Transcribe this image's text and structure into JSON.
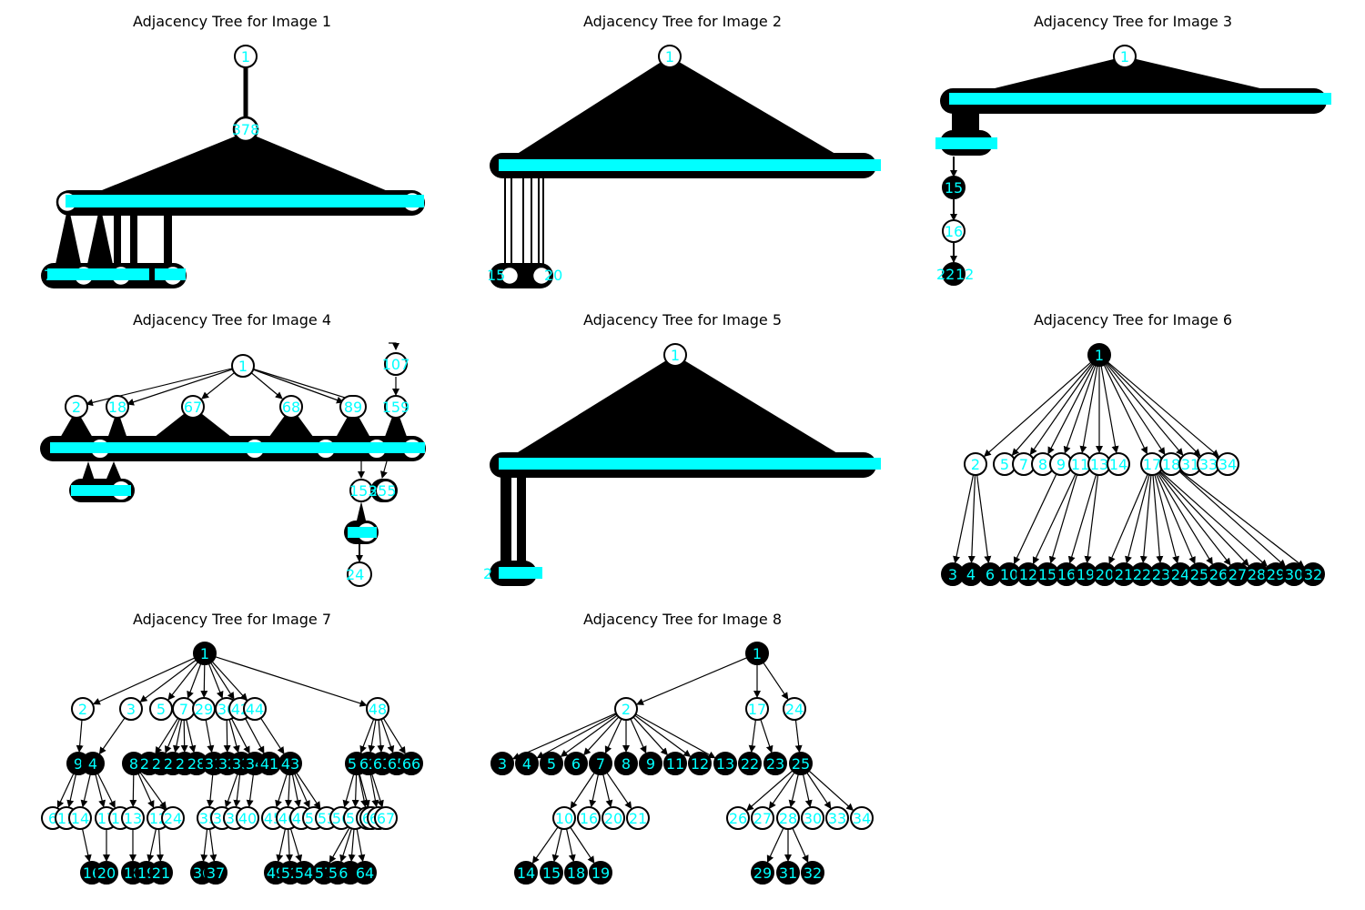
{
  "colors": {
    "background": "#ffffff",
    "edge": "#000000",
    "node_stroke": "#000000",
    "node_fill_open": "#ffffff",
    "node_fill_filled": "#000000",
    "label": "#00ffff",
    "bar": "#00ffff"
  },
  "panels": [
    {
      "id": "tree1",
      "title": "Adjacency Tree for Image 1",
      "style": "dense",
      "root_label": "1",
      "mid_labels": [
        "378"
      ],
      "bottom_labels": [
        "7"
      ]
    },
    {
      "id": "tree2",
      "title": "Adjacency Tree for Image 2",
      "style": "dense",
      "root_label": "1",
      "mid_labels": [],
      "bottom_labels": [
        "15",
        "20"
      ]
    },
    {
      "id": "tree3",
      "title": "Adjacency Tree for Image 3",
      "style": "dense",
      "root_label": "1",
      "mid_labels": [
        "15",
        "16"
      ],
      "bottom_labels": [
        "22",
        "12"
      ]
    },
    {
      "id": "tree4",
      "title": "Adjacency Tree for Image 4",
      "style": "mixed",
      "labels": [
        "1",
        "2",
        "18",
        "67",
        "68",
        "89",
        "107",
        "159",
        "153",
        "255",
        "24"
      ]
    },
    {
      "id": "tree5",
      "title": "Adjacency Tree for Image 5",
      "style": "dense",
      "root_label": "1",
      "mid_labels": [],
      "bottom_labels": [
        "2"
      ]
    },
    {
      "id": "tree6",
      "title": "Adjacency Tree for Image 6",
      "style": "clean",
      "nodes": [
        {
          "label": "1",
          "filled": true
        },
        {
          "label": "2",
          "filled": false
        },
        {
          "label": "5",
          "filled": false
        },
        {
          "label": "7",
          "filled": false
        },
        {
          "label": "8",
          "filled": false
        },
        {
          "label": "9",
          "filled": false
        },
        {
          "label": "11",
          "filled": false
        },
        {
          "label": "13",
          "filled": false
        },
        {
          "label": "14",
          "filled": false
        },
        {
          "label": "17",
          "filled": false
        },
        {
          "label": "18",
          "filled": false
        },
        {
          "label": "31",
          "filled": false
        },
        {
          "label": "33",
          "filled": false
        },
        {
          "label": "34",
          "filled": false
        },
        {
          "label": "3",
          "filled": true
        },
        {
          "label": "4",
          "filled": true
        },
        {
          "label": "6",
          "filled": true
        },
        {
          "label": "10",
          "filled": true
        },
        {
          "label": "12",
          "filled": true
        },
        {
          "label": "15",
          "filled": true
        },
        {
          "label": "16",
          "filled": true
        },
        {
          "label": "19",
          "filled": true
        },
        {
          "label": "20",
          "filled": true
        },
        {
          "label": "21",
          "filled": true
        },
        {
          "label": "22",
          "filled": true
        },
        {
          "label": "23",
          "filled": true
        },
        {
          "label": "24",
          "filled": true
        },
        {
          "label": "25",
          "filled": true
        },
        {
          "label": "26",
          "filled": true
        },
        {
          "label": "27",
          "filled": true
        },
        {
          "label": "28",
          "filled": true
        },
        {
          "label": "29",
          "filled": true
        },
        {
          "label": "30",
          "filled": true
        },
        {
          "label": "32",
          "filled": true
        }
      ],
      "edges": [
        [
          "1",
          "2"
        ],
        [
          "1",
          "5"
        ],
        [
          "1",
          "7"
        ],
        [
          "1",
          "8"
        ],
        [
          "1",
          "9"
        ],
        [
          "1",
          "11"
        ],
        [
          "1",
          "13"
        ],
        [
          "1",
          "14"
        ],
        [
          "1",
          "17"
        ],
        [
          "1",
          "18"
        ],
        [
          "1",
          "31"
        ],
        [
          "1",
          "33"
        ],
        [
          "1",
          "34"
        ],
        [
          "2",
          "3"
        ],
        [
          "2",
          "4"
        ],
        [
          "2",
          "6"
        ],
        [
          "9",
          "10"
        ],
        [
          "11",
          "12"
        ],
        [
          "11",
          "15"
        ],
        [
          "13",
          "16"
        ],
        [
          "13",
          "19"
        ],
        [
          "17",
          "20"
        ],
        [
          "17",
          "21"
        ],
        [
          "17",
          "22"
        ],
        [
          "17",
          "23"
        ],
        [
          "17",
          "24"
        ],
        [
          "17",
          "25"
        ],
        [
          "17",
          "26"
        ],
        [
          "17",
          "27"
        ],
        [
          "17",
          "28"
        ],
        [
          "17",
          "29"
        ],
        [
          "18",
          "30"
        ],
        [
          "18",
          "32"
        ]
      ]
    },
    {
      "id": "tree7",
      "title": "Adjacency Tree for Image 7",
      "style": "clean",
      "nodes": [
        {
          "label": "1",
          "filled": true
        },
        {
          "label": "2",
          "filled": false
        },
        {
          "label": "3",
          "filled": false
        },
        {
          "label": "5",
          "filled": false
        },
        {
          "label": "7",
          "filled": false
        },
        {
          "label": "29",
          "filled": false
        },
        {
          "label": "30",
          "filled": false
        },
        {
          "label": "42",
          "filled": false
        },
        {
          "label": "44",
          "filled": false
        },
        {
          "label": "48",
          "filled": false
        },
        {
          "label": "9",
          "filled": true
        },
        {
          "label": "4",
          "filled": true
        },
        {
          "label": "8",
          "filled": true
        },
        {
          "label": "23",
          "filled": true
        },
        {
          "label": "25",
          "filled": true
        },
        {
          "label": "26",
          "filled": true
        },
        {
          "label": "27",
          "filled": true
        },
        {
          "label": "28",
          "filled": true
        },
        {
          "label": "31",
          "filled": true
        },
        {
          "label": "32",
          "filled": true
        },
        {
          "label": "33",
          "filled": true
        },
        {
          "label": "34",
          "filled": true
        },
        {
          "label": "41",
          "filled": true
        },
        {
          "label": "43",
          "filled": true
        },
        {
          "label": "51",
          "filled": true
        },
        {
          "label": "62",
          "filled": true
        },
        {
          "label": "63",
          "filled": true
        },
        {
          "label": "65",
          "filled": true
        },
        {
          "label": "66",
          "filled": true
        },
        {
          "label": "6",
          "filled": false
        },
        {
          "label": "11",
          "filled": false
        },
        {
          "label": "14",
          "filled": false
        },
        {
          "label": "17",
          "filled": false
        },
        {
          "label": "10",
          "filled": false
        },
        {
          "label": "13",
          "filled": false
        },
        {
          "label": "12",
          "filled": false
        },
        {
          "label": "24",
          "filled": false
        },
        {
          "label": "35",
          "filled": false
        },
        {
          "label": "38",
          "filled": false
        },
        {
          "label": "39",
          "filled": false
        },
        {
          "label": "40",
          "filled": false
        },
        {
          "label": "45",
          "filled": false
        },
        {
          "label": "46",
          "filled": false
        },
        {
          "label": "47",
          "filled": false
        },
        {
          "label": "50",
          "filled": false
        },
        {
          "label": "53",
          "filled": false
        },
        {
          "label": "56",
          "filled": false
        },
        {
          "label": "59",
          "filled": false
        },
        {
          "label": "55",
          "filled": false
        },
        {
          "label": "60",
          "filled": false
        },
        {
          "label": "61",
          "filled": false
        },
        {
          "label": "67",
          "filled": false
        },
        {
          "label": "16",
          "filled": true
        },
        {
          "label": "20",
          "filled": true
        },
        {
          "label": "18",
          "filled": true
        },
        {
          "label": "19",
          "filled": true
        },
        {
          "label": "21",
          "filled": true
        },
        {
          "label": "36",
          "filled": true
        },
        {
          "label": "37",
          "filled": true
        },
        {
          "label": "49",
          "filled": true
        },
        {
          "label": "52",
          "filled": true
        },
        {
          "label": "54",
          "filled": true
        },
        {
          "label": "57",
          "filled": true
        },
        {
          "label": "58",
          "filled": true
        },
        {
          "label": "6 0",
          "filled": true
        },
        {
          "label": "64",
          "filled": true
        }
      ],
      "edges": [
        [
          "1",
          "2"
        ],
        [
          "1",
          "3"
        ],
        [
          "1",
          "5"
        ],
        [
          "1",
          "7"
        ],
        [
          "1",
          "29"
        ],
        [
          "1",
          "30"
        ],
        [
          "1",
          "42"
        ],
        [
          "1",
          "44"
        ],
        [
          "1",
          "48"
        ],
        [
          "2",
          "9"
        ],
        [
          "3",
          "4"
        ],
        [
          "7",
          "23"
        ],
        [
          "7",
          "25"
        ],
        [
          "7",
          "26"
        ],
        [
          "7",
          "27"
        ],
        [
          "7",
          "28"
        ],
        [
          "29",
          "31"
        ],
        [
          "30",
          "32"
        ],
        [
          "30",
          "33"
        ],
        [
          "30",
          "34"
        ],
        [
          "42",
          "41"
        ],
        [
          "44",
          "43"
        ],
        [
          "48",
          "51"
        ],
        [
          "48",
          "62"
        ],
        [
          "48",
          "63"
        ],
        [
          "48",
          "65"
        ],
        [
          "48",
          "66"
        ],
        [
          "9",
          "6"
        ],
        [
          "9",
          "11"
        ],
        [
          "4",
          "14"
        ],
        [
          "4",
          "17"
        ],
        [
          "4",
          "10"
        ],
        [
          "8",
          "13"
        ],
        [
          "8",
          "12"
        ],
        [
          "8",
          "24"
        ],
        [
          "31",
          "35"
        ],
        [
          "33",
          "38"
        ],
        [
          "33",
          "39"
        ],
        [
          "34",
          "40"
        ],
        [
          "43",
          "45"
        ],
        [
          "43",
          "46"
        ],
        [
          "43",
          "47"
        ],
        [
          "43",
          "50"
        ],
        [
          "43",
          "53"
        ],
        [
          "51",
          "56"
        ],
        [
          "51",
          "59"
        ],
        [
          "51",
          "55"
        ],
        [
          "51",
          "60"
        ],
        [
          "62",
          "61"
        ],
        [
          "62",
          "67"
        ],
        [
          "14",
          "16"
        ],
        [
          "17",
          "20"
        ],
        [
          "13",
          "18"
        ],
        [
          "12",
          "19"
        ],
        [
          "12",
          "21"
        ],
        [
          "35",
          "36"
        ],
        [
          "35",
          "37"
        ],
        [
          "46",
          "49"
        ],
        [
          "46",
          "52"
        ],
        [
          "46",
          "54"
        ],
        [
          "59",
          "57"
        ],
        [
          "59",
          "58"
        ],
        [
          "59",
          "6 0"
        ],
        [
          "59",
          "64"
        ]
      ]
    },
    {
      "id": "tree8",
      "title": "Adjacency Tree for Image 8",
      "style": "clean",
      "nodes": [
        {
          "label": "1",
          "filled": true
        },
        {
          "label": "2",
          "filled": false
        },
        {
          "label": "17",
          "filled": false
        },
        {
          "label": "24",
          "filled": false
        },
        {
          "label": "3",
          "filled": true
        },
        {
          "label": "4",
          "filled": true
        },
        {
          "label": "5",
          "filled": true
        },
        {
          "label": "6",
          "filled": true
        },
        {
          "label": "7",
          "filled": true
        },
        {
          "label": "8",
          "filled": true
        },
        {
          "label": "9",
          "filled": true
        },
        {
          "label": "11",
          "filled": true
        },
        {
          "label": "12",
          "filled": true
        },
        {
          "label": "13",
          "filled": true
        },
        {
          "label": "22",
          "filled": true
        },
        {
          "label": "23",
          "filled": true
        },
        {
          "label": "25",
          "filled": true
        },
        {
          "label": "10",
          "filled": false
        },
        {
          "label": "16",
          "filled": false
        },
        {
          "label": "20",
          "filled": false
        },
        {
          "label": "21",
          "filled": false
        },
        {
          "label": "26",
          "filled": false
        },
        {
          "label": "27",
          "filled": false
        },
        {
          "label": "28",
          "filled": false
        },
        {
          "label": "30",
          "filled": false
        },
        {
          "label": "33",
          "filled": false
        },
        {
          "label": "34",
          "filled": false
        },
        {
          "label": "14",
          "filled": true
        },
        {
          "label": "15",
          "filled": true
        },
        {
          "label": "18",
          "filled": true
        },
        {
          "label": "19",
          "filled": true
        },
        {
          "label": "29",
          "filled": true
        },
        {
          "label": "31",
          "filled": true
        },
        {
          "label": "32",
          "filled": true
        }
      ],
      "edges": [
        [
          "1",
          "2"
        ],
        [
          "1",
          "17"
        ],
        [
          "1",
          "24"
        ],
        [
          "2",
          "3"
        ],
        [
          "2",
          "4"
        ],
        [
          "2",
          "5"
        ],
        [
          "2",
          "6"
        ],
        [
          "2",
          "7"
        ],
        [
          "2",
          "8"
        ],
        [
          "2",
          "9"
        ],
        [
          "2",
          "11"
        ],
        [
          "2",
          "12"
        ],
        [
          "2",
          "13"
        ],
        [
          "17",
          "22"
        ],
        [
          "17",
          "23"
        ],
        [
          "24",
          "25"
        ],
        [
          "7",
          "10"
        ],
        [
          "7",
          "16"
        ],
        [
          "7",
          "20"
        ],
        [
          "7",
          "21"
        ],
        [
          "25",
          "26"
        ],
        [
          "25",
          "27"
        ],
        [
          "25",
          "28"
        ],
        [
          "25",
          "30"
        ],
        [
          "25",
          "33"
        ],
        [
          "25",
          "34"
        ],
        [
          "10",
          "14"
        ],
        [
          "10",
          "15"
        ],
        [
          "10",
          "18"
        ],
        [
          "10",
          "19"
        ],
        [
          "28",
          "29"
        ],
        [
          "28",
          "31"
        ],
        [
          "28",
          "32"
        ]
      ]
    }
  ]
}
